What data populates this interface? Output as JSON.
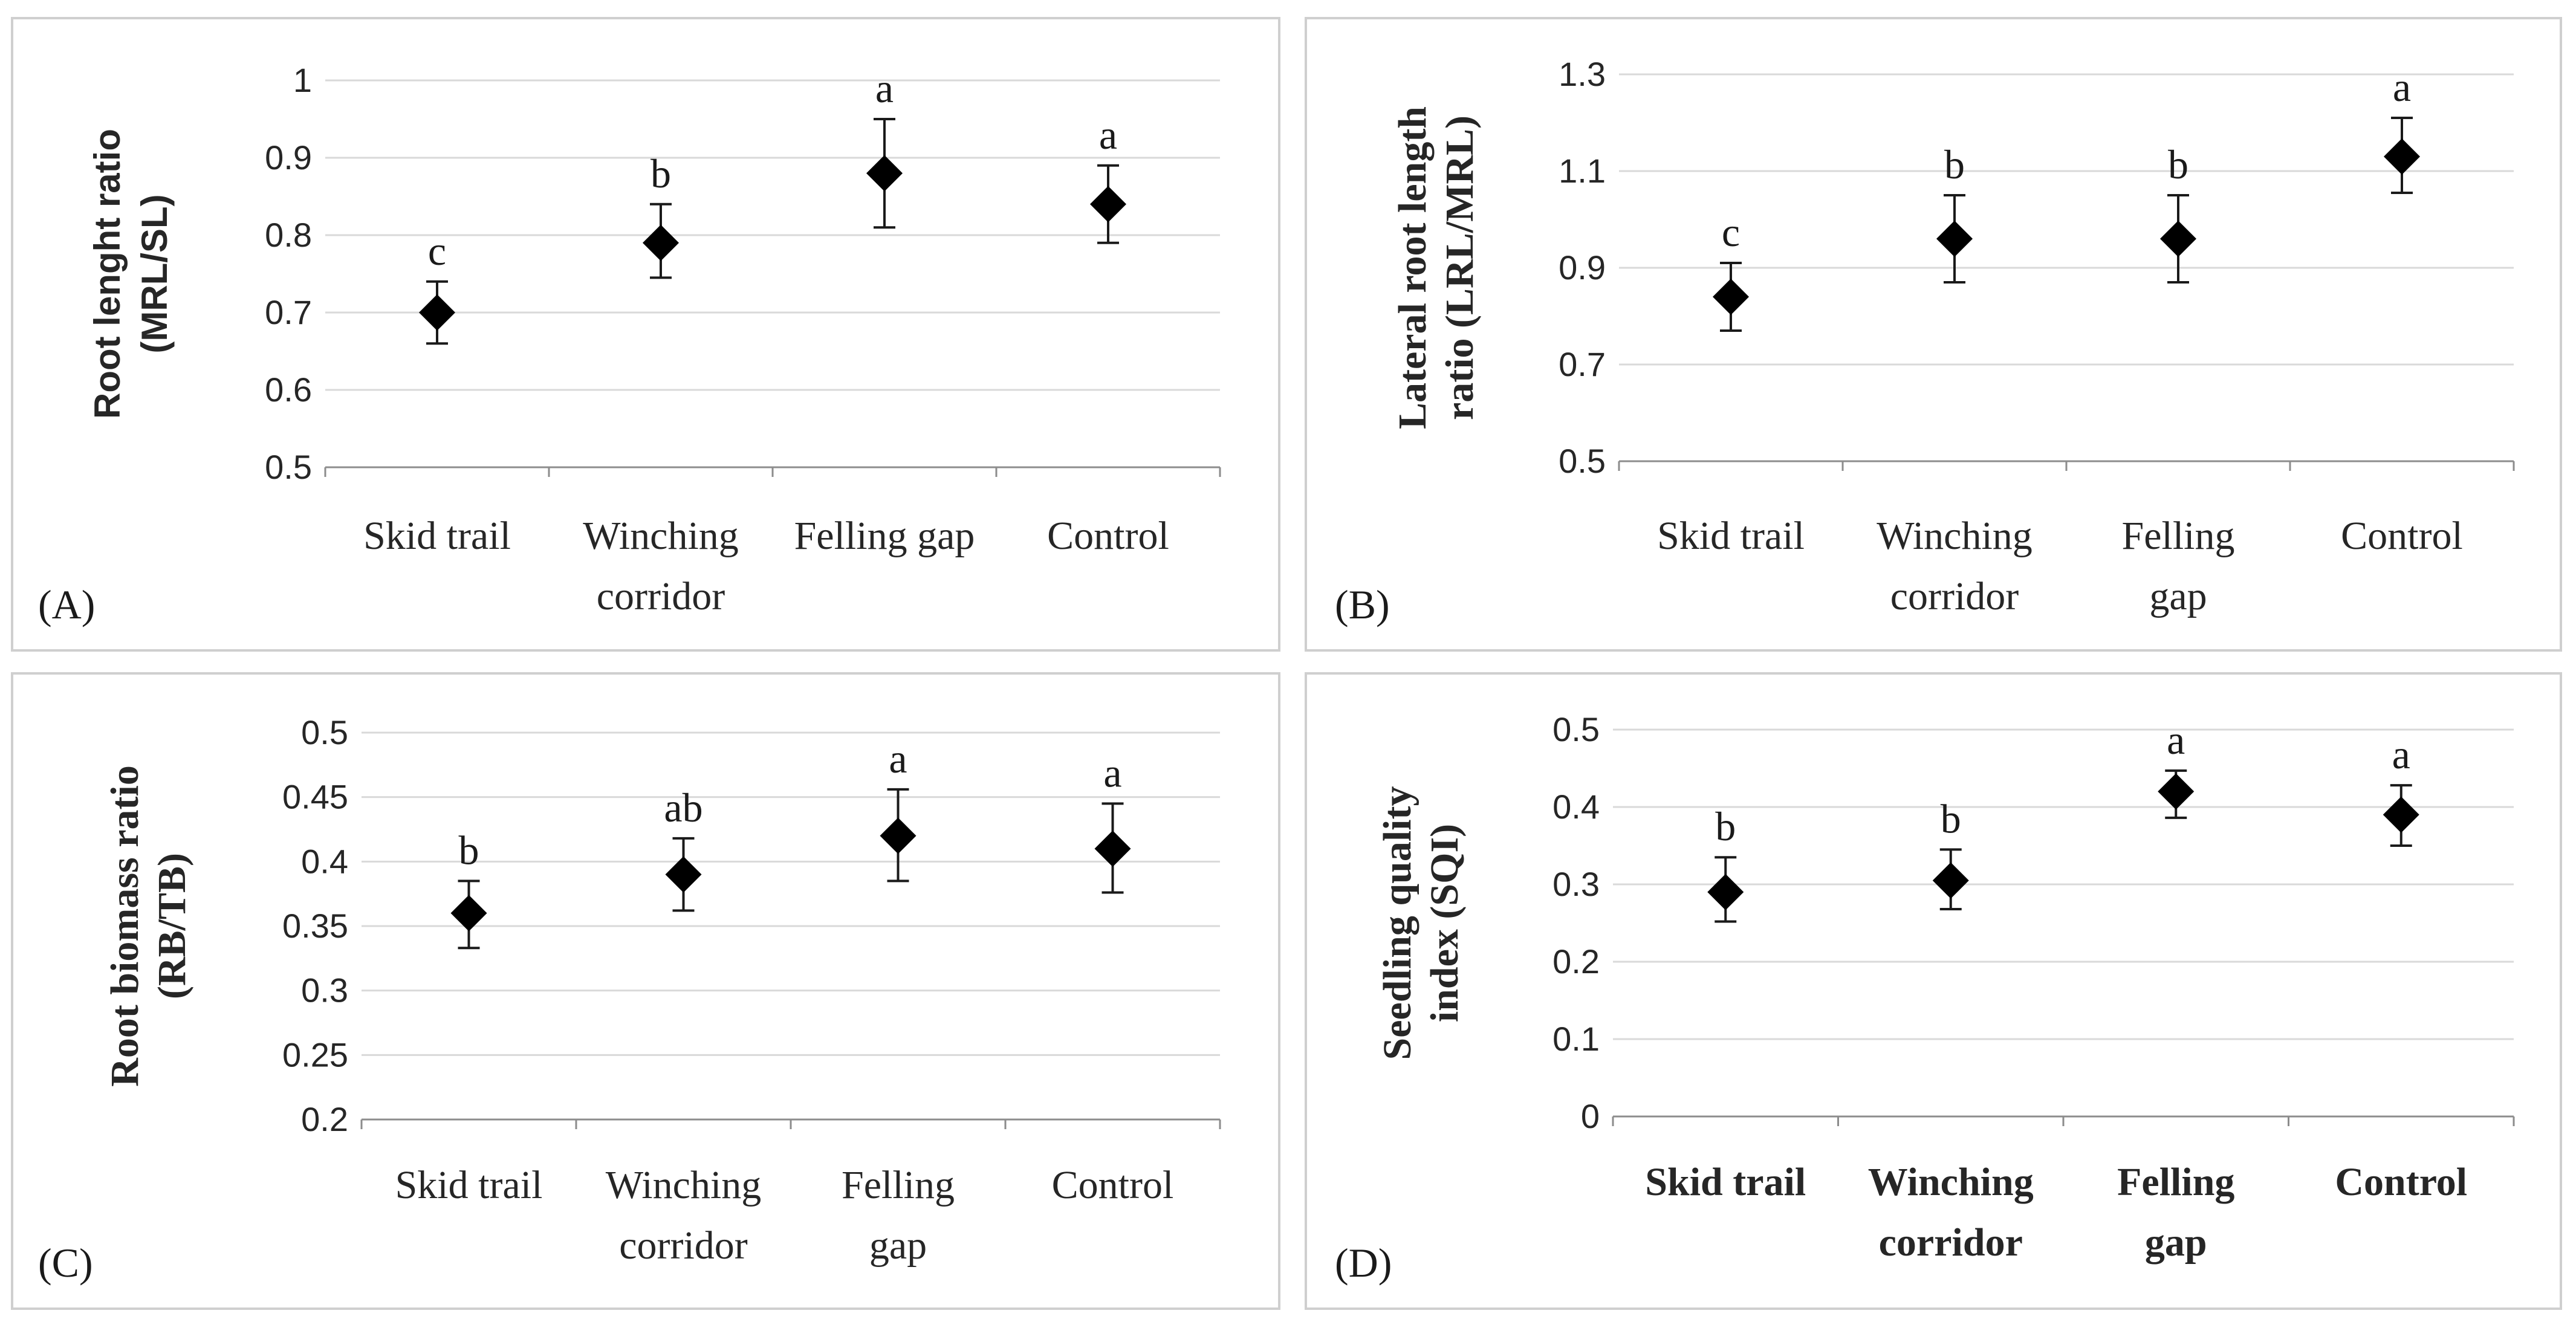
{
  "chart_data": [
    {
      "id": "A",
      "type": "scatter",
      "panel_label": "(A)",
      "ylabel_lines": [
        "Root lenght ratio",
        "(MRL/SL)"
      ],
      "ylabel_style": "sans",
      "ylim": [
        0.5,
        1.0
      ],
      "yticks": [
        "0.5",
        "0.6",
        "0.7",
        "0.8",
        "0.9",
        "1"
      ],
      "categories": [
        [
          "Skid trail"
        ],
        [
          "Winching",
          "corridor"
        ],
        [
          "Felling gap"
        ],
        [
          "Control"
        ]
      ],
      "xtick_bold": false,
      "values": [
        0.7,
        0.79,
        0.88,
        0.84
      ],
      "error_low": [
        0.66,
        0.745,
        0.81,
        0.79
      ],
      "error_high": [
        0.74,
        0.84,
        0.95,
        0.89
      ],
      "letters": [
        "c",
        "b",
        "a",
        "a"
      ],
      "grid": true,
      "marker_color": "#000000"
    },
    {
      "id": "B",
      "type": "scatter",
      "panel_label": "(B)",
      "ylabel_lines": [
        "Lateral root length",
        "ratio (LRL/MRL)"
      ],
      "ylabel_style": "serif",
      "ylim": [
        0.5,
        1.3
      ],
      "yticks": [
        "0.5",
        "0.7",
        "0.9",
        "1.1",
        "1.3"
      ],
      "categories": [
        [
          "Skid trail"
        ],
        [
          "Winching",
          "corridor"
        ],
        [
          "Felling",
          "gap"
        ],
        [
          "Control"
        ]
      ],
      "xtick_bold": false,
      "values": [
        0.84,
        0.96,
        0.96,
        1.13
      ],
      "error_low": [
        0.77,
        0.87,
        0.87,
        1.055
      ],
      "error_high": [
        0.91,
        1.05,
        1.05,
        1.21
      ],
      "letters": [
        "c",
        "b",
        "b",
        "a"
      ],
      "grid": true,
      "marker_color": "#000000"
    },
    {
      "id": "C",
      "type": "scatter",
      "panel_label": "(C)",
      "ylabel_lines": [
        "Root biomass ratio",
        "(RB/TB)"
      ],
      "ylabel_style": "serif",
      "ylim": [
        0.2,
        0.5
      ],
      "yticks": [
        "0.2",
        "0.25",
        "0.3",
        "0.35",
        "0.4",
        "0.45",
        "0.5"
      ],
      "categories": [
        [
          "Skid trail"
        ],
        [
          "Winching",
          "corridor"
        ],
        [
          "Felling",
          "gap"
        ],
        [
          "Control"
        ]
      ],
      "xtick_bold": false,
      "values": [
        0.36,
        0.39,
        0.42,
        0.41
      ],
      "error_low": [
        0.333,
        0.362,
        0.385,
        0.376
      ],
      "error_high": [
        0.385,
        0.418,
        0.456,
        0.445
      ],
      "letters": [
        "b",
        "ab",
        "a",
        "a"
      ],
      "grid": true,
      "marker_color": "#000000"
    },
    {
      "id": "D",
      "type": "scatter",
      "panel_label": "(D)",
      "ylabel_lines": [
        "Seedling quality",
        "index (SQI)"
      ],
      "ylabel_style": "serif",
      "ylim": [
        0,
        0.5
      ],
      "yticks": [
        "0",
        "0.1",
        "0.2",
        "0.3",
        "0.4",
        "0.5"
      ],
      "categories": [
        [
          "Skid trail"
        ],
        [
          "Winching",
          "corridor"
        ],
        [
          "Felling",
          "gap"
        ],
        [
          "Control"
        ]
      ],
      "xtick_bold": true,
      "values": [
        0.29,
        0.305,
        0.42,
        0.39
      ],
      "error_low": [
        0.252,
        0.268,
        0.386,
        0.35
      ],
      "error_high": [
        0.335,
        0.345,
        0.447,
        0.428
      ],
      "letters": [
        "b",
        "b",
        "a",
        "a"
      ],
      "grid": true,
      "marker_color": "#000000"
    }
  ]
}
